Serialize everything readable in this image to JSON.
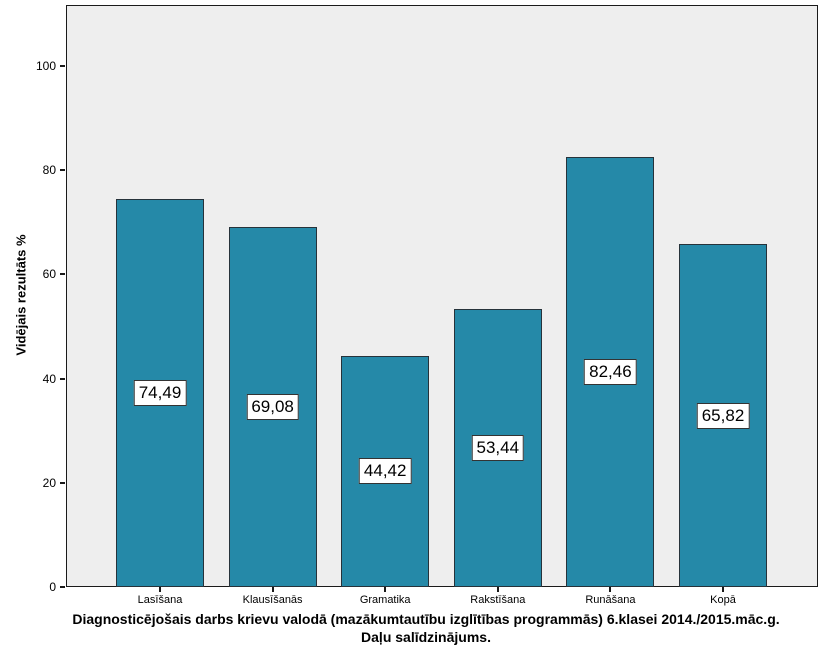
{
  "chart_data": {
    "type": "bar",
    "title": "Diagnosticējošais darbs krievu valodā (mazākumtautību izglītības programmās) 6.klasei 2014./2015.māc.g. Daļu salīdzinājums.",
    "title_lines": [
      "Diagnosticējošais darbs krievu valodā (mazākumtautību izglītības programmās) 6.klasei 2014./2015.māc.g.",
      "Daļu salīdzinājums."
    ],
    "ylabel": "Vidējais rezultāts %",
    "xlabel": "",
    "categories": [
      "Lasīšana",
      "Klausīšanās",
      "Gramatika",
      "Rakstīšana",
      "Runāšana",
      "Kopā"
    ],
    "values": [
      74.49,
      69.08,
      44.42,
      53.44,
      82.46,
      65.82
    ],
    "value_labels": [
      "74,49",
      "69,08",
      "44,42",
      "53,44",
      "82,46",
      "65,82"
    ],
    "yticks": [
      0,
      20,
      40,
      60,
      80,
      100
    ],
    "ytick_labels": [
      "0",
      "20",
      "40",
      "60",
      "80",
      "100"
    ],
    "ylim": [
      0,
      111.7
    ],
    "grid": "off",
    "legend": "none",
    "colors": {
      "bar_fill": "#2589a8",
      "bar_border": "#26323a",
      "plot_background": "#eeeeee",
      "figure_background": "#ffffff",
      "axis": "#1a1a1a",
      "text": "#000000"
    }
  }
}
